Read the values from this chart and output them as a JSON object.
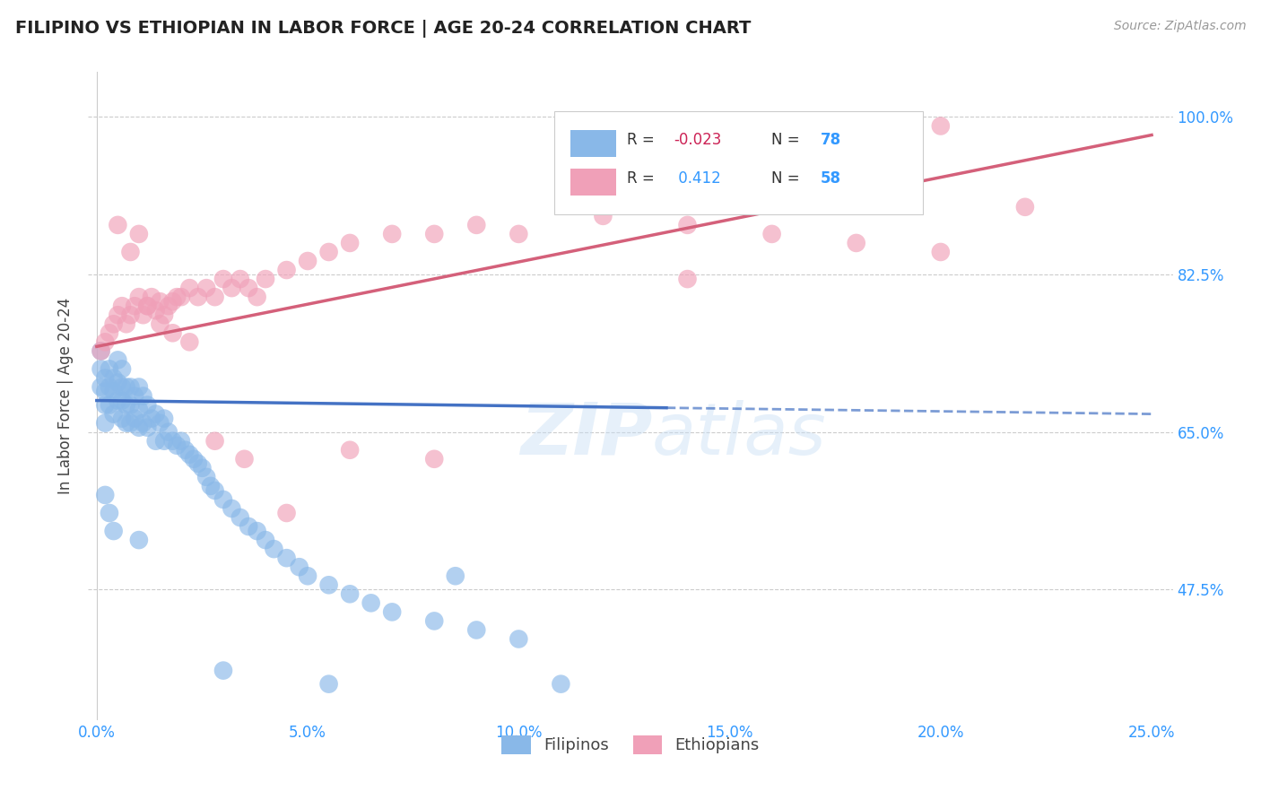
{
  "title": "FILIPINO VS ETHIOPIAN IN LABOR FORCE | AGE 20-24 CORRELATION CHART",
  "source_text": "Source: ZipAtlas.com",
  "ylabel": "In Labor Force | Age 20-24",
  "xlim": [
    -0.002,
    0.255
  ],
  "ylim": [
    0.33,
    1.05
  ],
  "xticks": [
    0.0,
    0.05,
    0.1,
    0.15,
    0.2,
    0.25
  ],
  "xtick_labels": [
    "0.0%",
    "5.0%",
    "10.0%",
    "15.0%",
    "20.0%",
    "25.0%"
  ],
  "yticks": [
    0.475,
    0.65,
    0.825,
    1.0
  ],
  "ytick_labels": [
    "47.5%",
    "65.0%",
    "82.5%",
    "100.0%"
  ],
  "filipino_color": "#89b8e8",
  "ethiopian_color": "#f0a0b8",
  "trend_filipino_color": "#4472c4",
  "trend_ethiopian_color": "#d4607a",
  "watermark": "ZIPatlas",
  "legend_r_filipino": "-0.023",
  "legend_n_filipino": "78",
  "legend_r_ethiopian": "0.412",
  "legend_n_ethiopian": "58",
  "fil_x": [
    0.001,
    0.001,
    0.001,
    0.002,
    0.002,
    0.002,
    0.002,
    0.003,
    0.003,
    0.003,
    0.004,
    0.004,
    0.004,
    0.005,
    0.005,
    0.005,
    0.006,
    0.006,
    0.006,
    0.006,
    0.007,
    0.007,
    0.007,
    0.008,
    0.008,
    0.008,
    0.009,
    0.009,
    0.01,
    0.01,
    0.01,
    0.011,
    0.011,
    0.012,
    0.012,
    0.013,
    0.014,
    0.014,
    0.015,
    0.016,
    0.016,
    0.017,
    0.018,
    0.019,
    0.02,
    0.021,
    0.022,
    0.023,
    0.024,
    0.025,
    0.026,
    0.027,
    0.028,
    0.03,
    0.032,
    0.034,
    0.036,
    0.038,
    0.04,
    0.042,
    0.045,
    0.048,
    0.05,
    0.055,
    0.06,
    0.065,
    0.07,
    0.08,
    0.09,
    0.1,
    0.002,
    0.003,
    0.004,
    0.01,
    0.03,
    0.055,
    0.085,
    0.11
  ],
  "fil_y": [
    0.74,
    0.72,
    0.7,
    0.71,
    0.695,
    0.68,
    0.66,
    0.72,
    0.7,
    0.68,
    0.71,
    0.695,
    0.67,
    0.73,
    0.705,
    0.685,
    0.72,
    0.7,
    0.685,
    0.665,
    0.7,
    0.68,
    0.66,
    0.7,
    0.68,
    0.66,
    0.69,
    0.665,
    0.7,
    0.675,
    0.655,
    0.69,
    0.66,
    0.68,
    0.655,
    0.665,
    0.67,
    0.64,
    0.66,
    0.665,
    0.64,
    0.65,
    0.64,
    0.635,
    0.64,
    0.63,
    0.625,
    0.62,
    0.615,
    0.61,
    0.6,
    0.59,
    0.585,
    0.575,
    0.565,
    0.555,
    0.545,
    0.54,
    0.53,
    0.52,
    0.51,
    0.5,
    0.49,
    0.48,
    0.47,
    0.46,
    0.45,
    0.44,
    0.43,
    0.42,
    0.58,
    0.56,
    0.54,
    0.53,
    0.385,
    0.37,
    0.49,
    0.37
  ],
  "eth_x": [
    0.001,
    0.002,
    0.003,
    0.004,
    0.005,
    0.006,
    0.007,
    0.008,
    0.009,
    0.01,
    0.011,
    0.012,
    0.013,
    0.014,
    0.015,
    0.016,
    0.017,
    0.018,
    0.019,
    0.02,
    0.022,
    0.024,
    0.026,
    0.028,
    0.03,
    0.032,
    0.034,
    0.036,
    0.038,
    0.04,
    0.045,
    0.05,
    0.055,
    0.06,
    0.07,
    0.08,
    0.09,
    0.1,
    0.12,
    0.14,
    0.16,
    0.18,
    0.2,
    0.22,
    0.005,
    0.008,
    0.01,
    0.012,
    0.015,
    0.018,
    0.022,
    0.028,
    0.035,
    0.045,
    0.06,
    0.08,
    0.14,
    0.2
  ],
  "eth_y": [
    0.74,
    0.75,
    0.76,
    0.77,
    0.78,
    0.79,
    0.77,
    0.78,
    0.79,
    0.8,
    0.78,
    0.79,
    0.8,
    0.785,
    0.795,
    0.78,
    0.79,
    0.795,
    0.8,
    0.8,
    0.81,
    0.8,
    0.81,
    0.8,
    0.82,
    0.81,
    0.82,
    0.81,
    0.8,
    0.82,
    0.83,
    0.84,
    0.85,
    0.86,
    0.87,
    0.87,
    0.88,
    0.87,
    0.89,
    0.88,
    0.87,
    0.86,
    0.85,
    0.9,
    0.88,
    0.85,
    0.87,
    0.79,
    0.77,
    0.76,
    0.75,
    0.64,
    0.62,
    0.56,
    0.63,
    0.62,
    0.82,
    0.99
  ],
  "trend_fil_x0": 0.0,
  "trend_fil_x1": 0.25,
  "trend_fil_y0": 0.685,
  "trend_fil_y1": 0.67,
  "trend_eth_x0": 0.0,
  "trend_eth_x1": 0.25,
  "trend_eth_y0": 0.745,
  "trend_eth_y1": 0.98,
  "trend_fil_solid_end": 0.135
}
